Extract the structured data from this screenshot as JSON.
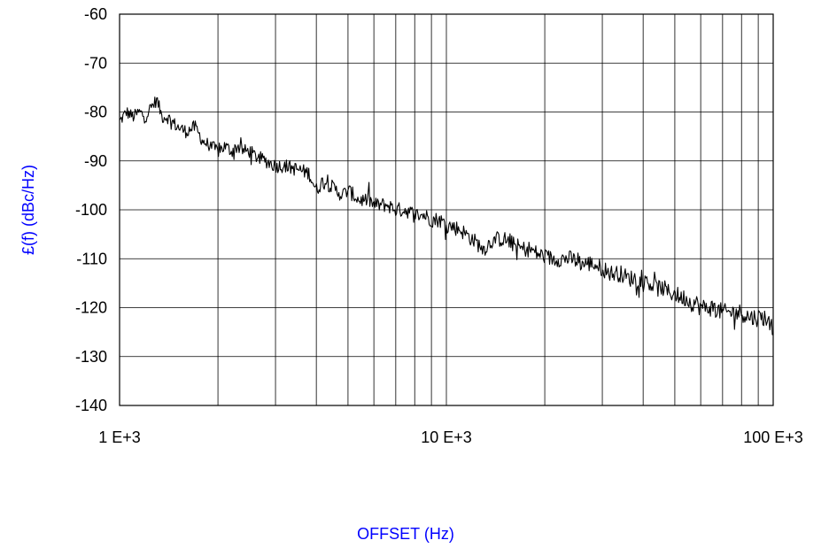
{
  "chart_data": {
    "type": "line",
    "title": "",
    "xlabel": "OFFSET (Hz)",
    "ylabel": "£(f) (dBc/Hz)",
    "x_scale": "log",
    "xlim": [
      1000,
      100000
    ],
    "ylim": [
      -140,
      -60
    ],
    "x_ticks": [
      1000,
      10000,
      100000
    ],
    "x_tick_labels": [
      "1 E+3",
      "10 E+3",
      "100 E+3"
    ],
    "y_ticks": [
      -60,
      -70,
      -80,
      -90,
      -100,
      -110,
      -120,
      -130,
      -140
    ],
    "y_tick_labels": [
      "-60",
      "-70",
      "-80",
      "-90",
      "-100",
      "-110",
      "-120",
      "-130",
      "-140"
    ],
    "grid": true,
    "label_color": "#0000ff",
    "line_color": "#000000",
    "series": [
      {
        "x": [
          1000,
          1050,
          1100,
          1150,
          1200,
          1250,
          1300,
          1350,
          1400,
          1500,
          1600,
          1700,
          1800,
          1900,
          2000,
          2100,
          2200,
          2300,
          2400,
          2500,
          2600,
          2800,
          3000,
          3200,
          3400,
          3600,
          3800,
          4000,
          4200,
          4400,
          4600,
          4800,
          5000,
          5200,
          5400,
          5600,
          5800,
          6000,
          6300,
          6600,
          7000,
          7500,
          8000,
          8500,
          9000,
          9500,
          10000,
          11000,
          12000,
          13000,
          14000,
          15000,
          16000,
          17000,
          18000,
          19000,
          20000,
          21000,
          22000,
          24000,
          26000,
          28000,
          30000,
          32000,
          34000,
          36000,
          38000,
          40000,
          42000,
          44000,
          46000,
          48000,
          50000,
          52000,
          54000,
          56000,
          58000,
          60000,
          63000,
          66000,
          70000,
          75000,
          80000,
          85000,
          90000,
          95000,
          100000
        ],
        "y": [
          -82,
          -80,
          -81,
          -80,
          -81,
          -79,
          -77.5,
          -81,
          -81,
          -83,
          -84,
          -83,
          -86,
          -87,
          -88,
          -87,
          -88,
          -87,
          -88,
          -88,
          -89,
          -90,
          -91,
          -91,
          -91.5,
          -92,
          -92.5,
          -96,
          -94,
          -95,
          -96,
          -97,
          -96,
          -97,
          -98,
          -98,
          -98,
          -99,
          -99,
          -99,
          -100,
          -100,
          -101,
          -101,
          -102,
          -102,
          -103,
          -104,
          -106,
          -108,
          -106,
          -106,
          -107,
          -108,
          -108,
          -109,
          -109.5,
          -110,
          -110,
          -110,
          -111,
          -111,
          -112,
          -113,
          -113,
          -114,
          -114,
          -115,
          -115,
          -116,
          -116,
          -117,
          -117,
          -118,
          -118,
          -119,
          -119,
          -120,
          -120,
          -120,
          -121,
          -121,
          -121,
          -122,
          -122,
          -122,
          -125
        ]
      }
    ]
  }
}
